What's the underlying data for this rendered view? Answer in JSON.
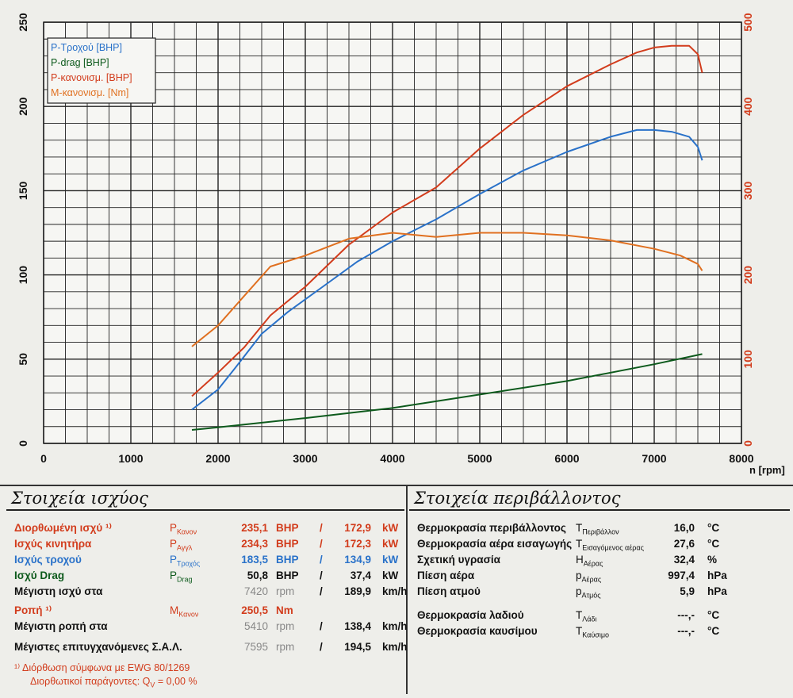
{
  "chart_data": {
    "type": "line",
    "xlabel": "n [rpm]",
    "xlim": [
      0,
      8000
    ],
    "x_ticks": [
      "0",
      "1000",
      "2000",
      "3000",
      "4000",
      "5000",
      "6000",
      "7000",
      "8000"
    ],
    "y_left_lim": [
      0,
      250
    ],
    "y_left_ticks": [
      "0",
      "50",
      "100",
      "150",
      "200",
      "250"
    ],
    "y_right_lim": [
      0,
      500
    ],
    "y_right_ticks": [
      "0",
      "100",
      "200",
      "300",
      "400",
      "500"
    ],
    "grid": true,
    "legend_position": "top-left",
    "series": [
      {
        "name": "P-Τροχού [BHP]",
        "color": "#2a72c9",
        "axis": "left",
        "x": [
          1700,
          2000,
          2200,
          2500,
          2800,
          3200,
          3600,
          4000,
          4500,
          5000,
          5500,
          6000,
          6500,
          6800,
          7000,
          7200,
          7400,
          7500,
          7550
        ],
        "y": [
          20,
          32,
          45,
          65,
          78,
          93,
          108,
          120,
          133,
          148,
          162,
          173,
          182,
          186,
          186,
          185,
          182,
          176,
          168
        ]
      },
      {
        "name": "P-drag [BHP]",
        "color": "#0d5a1c",
        "axis": "left",
        "x": [
          1700,
          2000,
          3000,
          4000,
          5000,
          6000,
          7000,
          7550
        ],
        "y": [
          8,
          9.5,
          15,
          21,
          29,
          37,
          47,
          53
        ]
      },
      {
        "name": "P-κανονισμ. [BHP]",
        "color": "#d23c1c",
        "axis": "left",
        "x": [
          1700,
          2000,
          2300,
          2600,
          3000,
          3500,
          4000,
          4500,
          5000,
          5500,
          6000,
          6500,
          6800,
          7000,
          7200,
          7400,
          7500,
          7550
        ],
        "y": [
          28,
          42,
          57,
          76,
          93,
          118,
          137,
          152,
          175,
          195,
          212,
          225,
          232,
          235,
          236,
          236,
          231,
          220
        ]
      },
      {
        "name": "M-κανονισμ. [Nm]",
        "color": "#e07020",
        "axis": "right",
        "x": [
          1700,
          2000,
          2300,
          2600,
          3000,
          3500,
          4000,
          4500,
          5000,
          5500,
          6000,
          6500,
          7000,
          7300,
          7500,
          7550
        ],
        "y": [
          115,
          140,
          175,
          210,
          223,
          243,
          250,
          245,
          250,
          250,
          247,
          241,
          231,
          223,
          213,
          205
        ]
      }
    ]
  },
  "power": {
    "title": "Στοιχεία ισχύος",
    "corrected_label": "Διορθωμένη ισχύ ¹⁾",
    "corrected_sym": "P",
    "corrected_sub": "Κανον",
    "corrected_bhp": "235,1",
    "corrected_kw": "172,9",
    "engine_label": "Ισχύς κινητήρα",
    "engine_sym": "P",
    "engine_sub": "Αγγλ",
    "engine_bhp": "234,3",
    "engine_kw": "172,3",
    "wheel_label": "Ισχύς τροχού",
    "wheel_sym": "P",
    "wheel_sub": "Τροχός",
    "wheel_bhp": "183,5",
    "wheel_kw": "134,9",
    "drag_label": "Ισχύ Drag",
    "drag_sym": "P",
    "drag_sub": "Drag",
    "drag_bhp": "50,8",
    "drag_kw": "37,4",
    "max_power_label": "Μέγιστη ισχύ στα",
    "max_power_rpm": "7420",
    "max_power_kmh": "189,9",
    "torque_label": "Ροπή ¹⁾",
    "torque_sym": "M",
    "torque_sub": "Κανον",
    "torque_value": "250,5",
    "torque_unit": "Nm",
    "max_torque_label": "Μέγιστη ροπή στα",
    "max_torque_rpm": "5410",
    "max_torque_kmh": "138,4",
    "max_rpm_label": "Μέγιστες επιτυγχανόμενες Σ.Α.Λ.",
    "max_rpm_rpm": "7595",
    "max_rpm_kmh": "194,5",
    "unit_bhp": "BHP",
    "unit_kw": "kW",
    "unit_rpm": "rpm",
    "unit_kmh": "km/h",
    "slash": "/",
    "footnote1": "¹⁾ Διόρθωση σύμφωνα με EWG 80/1269",
    "footnote2": "Διορθωτικοί παράγοντες: Q",
    "footnote2_sub": "V",
    "footnote2_val": " =   0,00 %"
  },
  "env": {
    "title": "Στοιχεία περιβάλλοντος",
    "rows": [
      {
        "label": "Θερμοκρασία περιβάλλοντος",
        "sym": "T",
        "sub": "Περιβάλλον",
        "value": "16,0",
        "unit": "°C"
      },
      {
        "label": "Θερμοκρασία αέρα εισαγωγής",
        "sym": "T",
        "sub": "Εισαγόμενος αέρας",
        "value": "27,6",
        "unit": "°C"
      },
      {
        "label": "Σχετική υγρασία",
        "sym": "H",
        "sub": "Αέρας",
        "value": "32,4",
        "unit": "%"
      },
      {
        "label": "Πίεση αέρα",
        "sym": "p",
        "sub": "Αέρας",
        "value": "997,4",
        "unit": "hPa"
      },
      {
        "label": "Πίεση ατμού",
        "sym": "p",
        "sub": "Ατμός",
        "value": "5,9",
        "unit": "hPa"
      },
      {
        "label": "Θερμοκρασία λαδιού",
        "sym": "T",
        "sub": "Λάδι",
        "value": "---,-",
        "unit": "°C"
      },
      {
        "label": "Θερμοκρασία καυσίμου",
        "sym": "T",
        "sub": "Καύσιμο",
        "value": "---,-",
        "unit": "°C"
      }
    ]
  }
}
